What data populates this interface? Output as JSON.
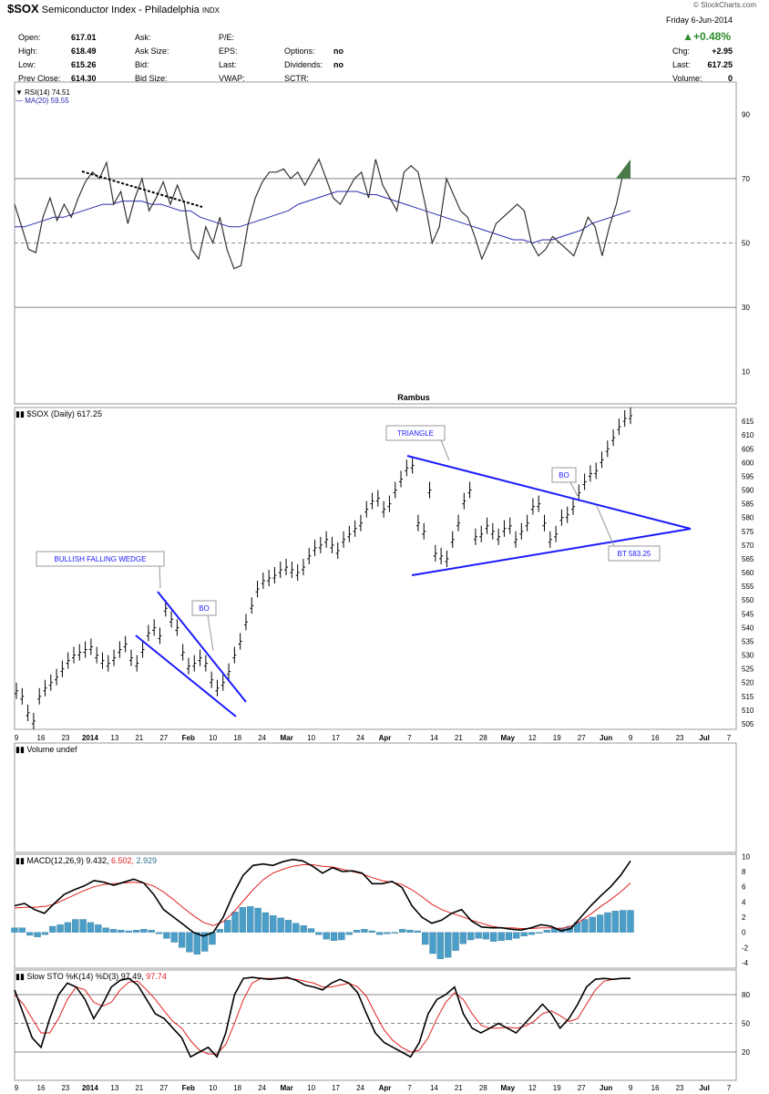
{
  "header": {
    "symbol": "$SOX",
    "name": "Semiconductor Index - Philadelphia",
    "exchange": "INDX",
    "copyright": "© StockCharts.com",
    "date": "Friday  6-Jun-2014",
    "change_pct": "▲+0.48%",
    "quotes_left": [
      {
        "label": "Open:",
        "value": "617.01"
      },
      {
        "label": "High:",
        "value": "618.49"
      },
      {
        "label": "Low:",
        "value": "615.26"
      },
      {
        "label": "Prev Close:",
        "value": "614.30"
      }
    ],
    "quotes_mid": [
      "Ask:",
      "Ask Size:",
      "Bid:",
      "Bid Size:"
    ],
    "quotes_mid2": [
      "P/E:",
      "EPS:",
      "Last:",
      "VWAP:"
    ],
    "quotes_mid3": [
      {
        "label": "Options:",
        "value": "no"
      },
      {
        "label": "Dividends:",
        "value": "no"
      },
      {
        "label": "SCTR:",
        "value": ""
      }
    ],
    "quotes_right": [
      {
        "label": "Chg:",
        "value": "+2.95"
      },
      {
        "label": "Last:",
        "value": "617.25"
      },
      {
        "label": "Volume:",
        "value": "0"
      }
    ]
  },
  "chart_data": [
    {
      "type": "line",
      "panel": "RSI",
      "legend": [
        "RSI(14) 74.51",
        "MA(20) 59.55"
      ],
      "ylim": [
        0,
        100
      ],
      "yticks": [
        10,
        30,
        50,
        70,
        90
      ],
      "series": [
        {
          "name": "RSI(14)",
          "values": [
            62,
            55,
            48,
            47,
            58,
            64,
            57,
            62,
            58,
            64,
            69,
            72,
            70,
            75,
            62,
            66,
            56,
            64,
            70,
            60,
            64,
            69,
            62,
            68,
            62,
            48,
            45,
            55,
            50,
            58,
            48,
            42,
            43,
            56,
            64,
            69,
            72,
            72,
            73,
            70,
            72,
            68,
            72,
            76,
            70,
            64,
            62,
            66,
            70,
            72,
            64,
            76,
            68,
            64,
            60,
            72,
            74,
            72,
            62,
            50,
            55,
            70,
            65,
            60,
            58,
            52,
            45,
            50,
            56,
            58,
            60,
            62,
            60,
            50,
            46,
            48,
            52,
            50,
            48,
            46,
            52,
            58,
            55,
            46,
            55,
            62,
            72,
            74
          ]
        },
        {
          "name": "MA(20)",
          "values": [
            55,
            55,
            56,
            57,
            58,
            58,
            59,
            60,
            61,
            62,
            62,
            63,
            63,
            63,
            62,
            62,
            61,
            60,
            60,
            58,
            57,
            56,
            55,
            55,
            56,
            57,
            58,
            59,
            60,
            62,
            63,
            64,
            65,
            66,
            66,
            66,
            65,
            65,
            64,
            63,
            62,
            61,
            60,
            59,
            58,
            57,
            56,
            55,
            54,
            53,
            52,
            51,
            51,
            50,
            51,
            51,
            52,
            53,
            54,
            56,
            57,
            58,
            59,
            60
          ]
        }
      ]
    },
    {
      "type": "line",
      "panel": "Price",
      "title": "Rambus",
      "legend": "$SOX (Daily) 617.25",
      "ylim": [
        503,
        620
      ],
      "yticks": [
        505,
        510,
        515,
        520,
        525,
        530,
        535,
        540,
        545,
        550,
        555,
        560,
        565,
        570,
        575,
        580,
        585,
        590,
        595,
        600,
        605,
        610,
        615
      ],
      "x_tick_labels": [
        "9",
        "16",
        "23",
        "2014",
        "13",
        "21",
        "27",
        "Feb",
        "10",
        "18",
        "24",
        "Mar",
        "10",
        "17",
        "24",
        "Apr",
        "7",
        "14",
        "21",
        "28",
        "May",
        "12",
        "19",
        "27",
        "Jun",
        "9",
        "16",
        "23",
        "Jul",
        "7"
      ],
      "series": [
        {
          "name": "$SOX",
          "values": [
            517,
            515,
            509,
            506,
            515,
            518,
            520,
            522,
            525,
            528,
            530,
            531,
            532,
            533,
            530,
            528,
            527,
            529,
            532,
            534,
            529,
            527,
            532,
            538,
            540,
            537,
            547,
            543,
            540,
            531,
            526,
            527,
            529,
            527,
            521,
            518,
            520,
            524,
            530,
            535,
            542,
            548,
            554,
            557,
            558,
            559,
            561,
            562,
            561,
            560,
            562,
            566,
            569,
            570,
            572,
            570,
            568,
            572,
            574,
            576,
            578,
            583,
            586,
            587,
            583,
            585,
            590,
            594,
            598,
            599,
            578,
            575,
            590,
            567,
            566,
            565,
            572,
            578,
            586,
            590,
            573,
            574,
            577,
            575,
            573,
            576,
            577,
            572,
            575,
            578,
            584,
            585,
            578,
            572,
            574,
            580,
            581,
            584,
            589,
            593,
            596,
            597,
            601,
            605,
            609,
            613,
            616,
            617
          ]
        }
      ],
      "annotations": [
        "BULLISH FALLING WEDGE",
        "BO",
        "TRIANGLE",
        "BO",
        "BT 583.25"
      ]
    },
    {
      "type": "bar",
      "panel": "Volume",
      "legend": "Volume undef",
      "series": []
    },
    {
      "type": "line",
      "panel": "MACD",
      "legend": [
        "MACD(12,26,9) 9.432,",
        "6.502,",
        "2.929"
      ],
      "ylim": [
        -4,
        10
      ],
      "yticks": [
        -4,
        -2,
        0,
        2,
        4,
        6,
        8,
        10
      ],
      "series": [
        {
          "name": "MACD",
          "values": [
            3.5,
            3.8,
            3,
            2.5,
            3.8,
            5,
            5.6,
            6.1,
            6.8,
            6.6,
            6.2,
            6.6,
            7,
            6.5,
            5,
            3,
            2,
            1,
            0,
            -0.5,
            0,
            2,
            5,
            7.5,
            8.8,
            9,
            8.8,
            9.3,
            9.6,
            9.4,
            8.7,
            7.8,
            8.5,
            8,
            8.1,
            7.8,
            6.4,
            6.4,
            6.7,
            5.9,
            3.5,
            2,
            1.2,
            1.6,
            2.5,
            3,
            1.5,
            0.7,
            0.6,
            0.6,
            0.4,
            0.3,
            0.6,
            1,
            0.8,
            0.2,
            0.5,
            2,
            3.5,
            4.8,
            6,
            7.5,
            9.4
          ]
        },
        {
          "name": "Signal",
          "values": [
            3.2,
            3.3,
            3.3,
            3.4,
            3.7,
            4.3,
            4.9,
            5.5,
            6,
            6.3,
            6.4,
            6.5,
            6.6,
            6.5,
            6.1,
            5.3,
            4.3,
            3.2,
            2.2,
            1.3,
            0.9,
            1.4,
            2.6,
            4.1,
            5.6,
            6.9,
            7.8,
            8.3,
            8.7,
            8.9,
            8.9,
            8.7,
            8.6,
            8.3,
            8,
            7.7,
            7.2,
            6.8,
            6.6,
            6.3,
            5.6,
            4.7,
            3.7,
            3,
            2.5,
            2.1,
            1.6,
            1.2,
            0.8,
            0.6,
            0.6,
            0.5,
            0.5,
            0.6,
            0.6,
            0.5,
            0.8,
            1.5,
            2.4,
            3.4,
            4.3,
            5.3,
            6.5
          ]
        },
        {
          "name": "Histogram",
          "values": [
            0.6,
            0.6,
            -0.4,
            -0.6,
            -0.3,
            0.8,
            1,
            1.3,
            1.7,
            1.7,
            1.3,
            1,
            0.6,
            0.4,
            0.3,
            0.2,
            0.3,
            0.4,
            0.3,
            -0.2,
            -0.8,
            -1.3,
            -2,
            -2.6,
            -2.9,
            -2.5,
            -1.6,
            0.4,
            1.6,
            2.7,
            3.3,
            3.4,
            3.2,
            2.6,
            2.2,
            1.9,
            1.6,
            1.2,
            0.9,
            0.5,
            -0.3,
            -0.9,
            -1.1,
            -1,
            -0.3,
            0.3,
            0.4,
            0.2,
            -0.3,
            -0.2,
            -0.1,
            0.4,
            0.3,
            0.2,
            -1.6,
            -2.8,
            -3.5,
            -3.3,
            -2.4,
            -1.5,
            -1,
            -0.8,
            -0.9,
            -1.2,
            -1.1,
            -1,
            -0.8,
            -0.5,
            -0.3,
            -0.1,
            0.3,
            0.5,
            0.6,
            0.8,
            1.3,
            1.7,
            2,
            2.3,
            2.6,
            2.8,
            2.9,
            2.9
          ]
        }
      ]
    },
    {
      "type": "line",
      "panel": "Slow STO",
      "legend": [
        "Slow STO %K(14) %D(3) 97.49,",
        "97.74"
      ],
      "ylim": [
        0,
        100
      ],
      "yticks": [
        20,
        50,
        80
      ],
      "series": [
        {
          "name": "%K",
          "values": [
            85,
            60,
            35,
            25,
            55,
            80,
            92,
            88,
            75,
            55,
            70,
            88,
            95,
            97,
            90,
            75,
            60,
            55,
            45,
            35,
            15,
            20,
            25,
            15,
            40,
            80,
            97,
            98,
            97,
            96,
            97,
            98,
            95,
            90,
            88,
            85,
            92,
            96,
            92,
            82,
            60,
            40,
            30,
            25,
            20,
            15,
            30,
            60,
            75,
            80,
            88,
            60,
            45,
            40,
            45,
            50,
            45,
            40,
            50,
            60,
            70,
            60,
            45,
            55,
            70,
            88,
            96,
            97,
            96,
            97,
            97
          ]
        },
        {
          "name": "%D",
          "values": [
            80,
            70,
            55,
            40,
            40,
            55,
            75,
            88,
            85,
            72,
            68,
            72,
            85,
            93,
            94,
            85,
            75,
            63,
            52,
            45,
            32,
            22,
            18,
            18,
            28,
            50,
            75,
            92,
            97,
            97,
            97,
            97,
            96,
            94,
            92,
            88,
            88,
            90,
            92,
            88,
            78,
            60,
            43,
            32,
            25,
            20,
            22,
            35,
            55,
            72,
            82,
            75,
            60,
            48,
            45,
            45,
            46,
            45,
            47,
            52,
            60,
            63,
            58,
            52,
            55,
            70,
            85,
            94,
            96,
            97,
            97
          ]
        }
      ]
    }
  ]
}
